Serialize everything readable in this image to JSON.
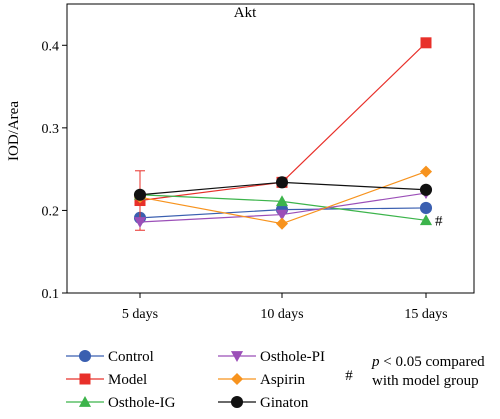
{
  "chart_data": {
    "type": "line",
    "title": "Akt",
    "xlabel": "",
    "ylabel": "IOD/Area",
    "categories": [
      "5 days",
      "10 days",
      "15 days"
    ],
    "ylim": [
      0.1,
      0.45
    ],
    "yticks": [
      0.1,
      0.2,
      0.3,
      0.4
    ],
    "ytick_labels": [
      "0.1",
      "0.2",
      "0.3",
      "0.4"
    ],
    "grid": false,
    "legend_position": "bottom",
    "series": [
      {
        "name": "Control",
        "values": [
          0.191,
          0.201,
          0.203
        ],
        "color": "#3a5fb0",
        "marker": "circle"
      },
      {
        "name": "Model",
        "values": [
          0.212,
          0.234,
          0.403
        ],
        "color": "#e8302a",
        "marker": "square",
        "error": [
          0.036,
          0,
          0
        ]
      },
      {
        "name": "Osthole-IG",
        "values": [
          0.219,
          0.211,
          0.188
        ],
        "color": "#3cb44b",
        "marker": "triangle-up"
      },
      {
        "name": "Osthole-PI",
        "values": [
          0.186,
          0.195,
          0.221
        ],
        "color": "#9b4fb8",
        "marker": "triangle-down"
      },
      {
        "name": "Aspirin",
        "values": [
          0.216,
          0.184,
          0.247
        ],
        "color": "#f7931e",
        "marker": "diamond"
      },
      {
        "name": "Ginaton",
        "values": [
          0.219,
          0.234,
          0.225
        ],
        "color": "#111111",
        "marker": "circle"
      }
    ],
    "annotations": [
      {
        "text": "#",
        "category": "15 days",
        "series": "Osthole-IG"
      }
    ],
    "footnote": {
      "symbol": "#",
      "line1": "p < 0.05 compared",
      "line1_italic": "p",
      "line1_rest": " < 0.05 compared",
      "line2": "with model group"
    }
  }
}
